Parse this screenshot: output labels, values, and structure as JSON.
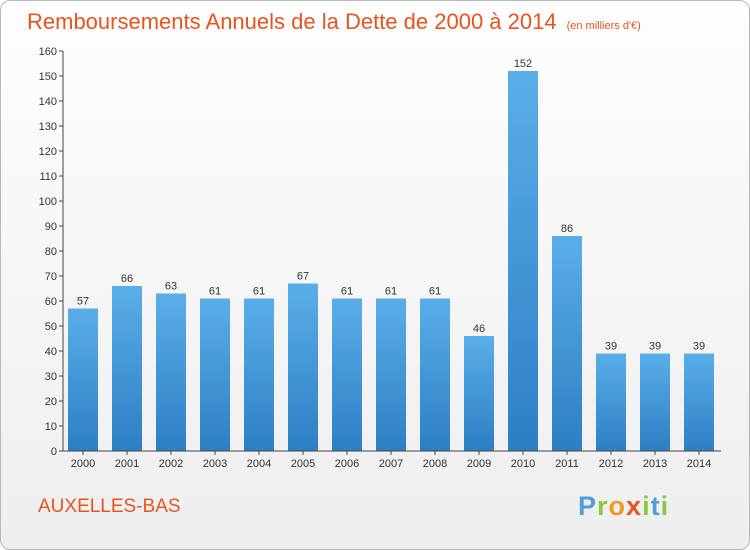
{
  "chart_data": {
    "type": "bar",
    "title": "Remboursements Annuels de la Dette de 2000 à 2014",
    "unit_note": "(en milliers d'€)",
    "categories": [
      "2000",
      "2001",
      "2002",
      "2003",
      "2004",
      "2005",
      "2006",
      "2007",
      "2008",
      "2009",
      "2010",
      "2011",
      "2012",
      "2013",
      "2014"
    ],
    "values": [
      57,
      66,
      63,
      61,
      61,
      67,
      61,
      61,
      61,
      46,
      152,
      86,
      39,
      39,
      39
    ],
    "ylim": [
      0,
      160
    ],
    "yticks": [
      0,
      10,
      20,
      30,
      40,
      50,
      60,
      70,
      80,
      90,
      100,
      110,
      120,
      130,
      140,
      150,
      160
    ],
    "grid": false,
    "bar_color": "#5aaee8",
    "bar_color_dark": "#2d7fc4"
  },
  "place_name": "AUXELLES-BAS",
  "logo": {
    "letters": [
      "P",
      "r",
      "o",
      "x",
      "i",
      "t",
      "i"
    ],
    "colors": [
      "#4e9fd8",
      "#8dc63f",
      "#f39c1f",
      "#e8541d",
      "#8dc63f",
      "#4e9fd8",
      "#8dc63f"
    ]
  },
  "colors": {
    "accent": "#e8541d",
    "axis": "#444444"
  }
}
